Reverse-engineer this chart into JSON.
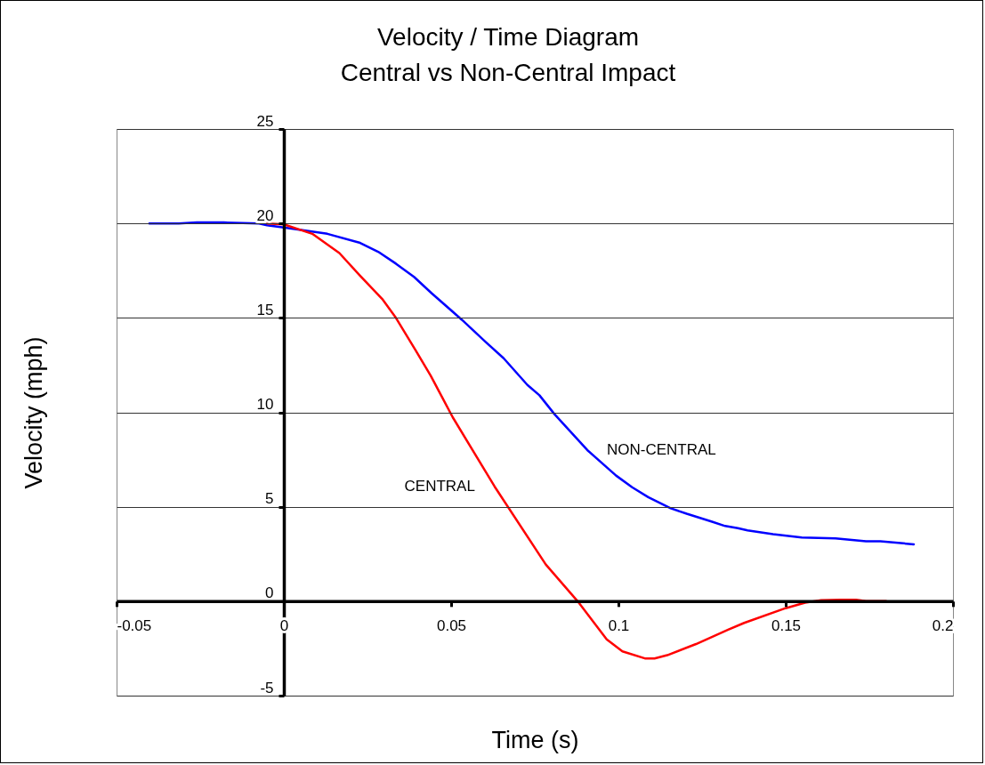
{
  "chart_data": {
    "type": "line",
    "title": "Velocity / Time Diagram",
    "subtitle": "Central vs Non-Central Impact",
    "xlabel": "Time (s)",
    "ylabel": "Velocity (mph)",
    "xlim": [
      -0.05,
      0.2
    ],
    "xticks": [
      -0.05,
      0,
      0.05,
      0.1,
      0.15,
      0.2
    ],
    "ylim": [
      -5,
      25
    ],
    "yticks": [
      -5,
      0,
      5,
      10,
      15,
      20,
      25
    ],
    "grid": "y",
    "legend": false,
    "line_style": "solid",
    "series": [
      {
        "name": "NON-CENTRAL",
        "color": "#0000ff",
        "x": [
          -0.0402,
          -0.0314,
          -0.026,
          -0.018,
          -0.0074,
          -0.005,
          0,
          0.013,
          0.0228,
          0.0282,
          0.0335,
          0.0389,
          0.0442,
          0.0532,
          0.0603,
          0.0657,
          0.0728,
          0.0764,
          0.0809,
          0.0907,
          0.0993,
          0.1041,
          0.1089,
          0.1156,
          0.1204,
          0.128,
          0.1319,
          0.1357,
          0.1386,
          0.1462,
          0.1548,
          0.1649,
          0.174,
          0.1783,
          0.1883
        ],
        "values": [
          20,
          20,
          20.05,
          20.05,
          20,
          19.9,
          19.78,
          19.45,
          18.97,
          18.5,
          17.87,
          17.17,
          16.3,
          14.9,
          13.73,
          12.86,
          11.45,
          10.9,
          9.9,
          8.0,
          6.65,
          6.03,
          5.51,
          4.92,
          4.63,
          4.21,
          3.98,
          3.87,
          3.75,
          3.55,
          3.37,
          3.32,
          3.17,
          3.17,
          3.01
        ]
      },
      {
        "name": "CENTRAL",
        "color": "#ff0000",
        "x": [
          -0.005,
          0,
          0.0085,
          0.0166,
          0.0227,
          0.0294,
          0.0335,
          0.0394,
          0.0439,
          0.047,
          0.0505,
          0.063,
          0.0783,
          0.0878,
          0.0965,
          0.1012,
          0.1079,
          0.1108,
          0.1146,
          0.1232,
          0.1328,
          0.1376,
          0.15,
          0.1558,
          0.1606,
          0.1663,
          0.171,
          0.174,
          0.18
        ],
        "values": [
          20,
          19.95,
          19.45,
          18.43,
          17.25,
          16.0,
          15.0,
          13.28,
          11.94,
          10.9,
          9.73,
          6.07,
          1.94,
          0,
          -2.02,
          -2.66,
          -3.03,
          -3.03,
          -2.86,
          -2.27,
          -1.51,
          -1.15,
          -0.37,
          -0.08,
          0.05,
          0.08,
          0.07,
          0,
          0
        ]
      }
    ]
  }
}
